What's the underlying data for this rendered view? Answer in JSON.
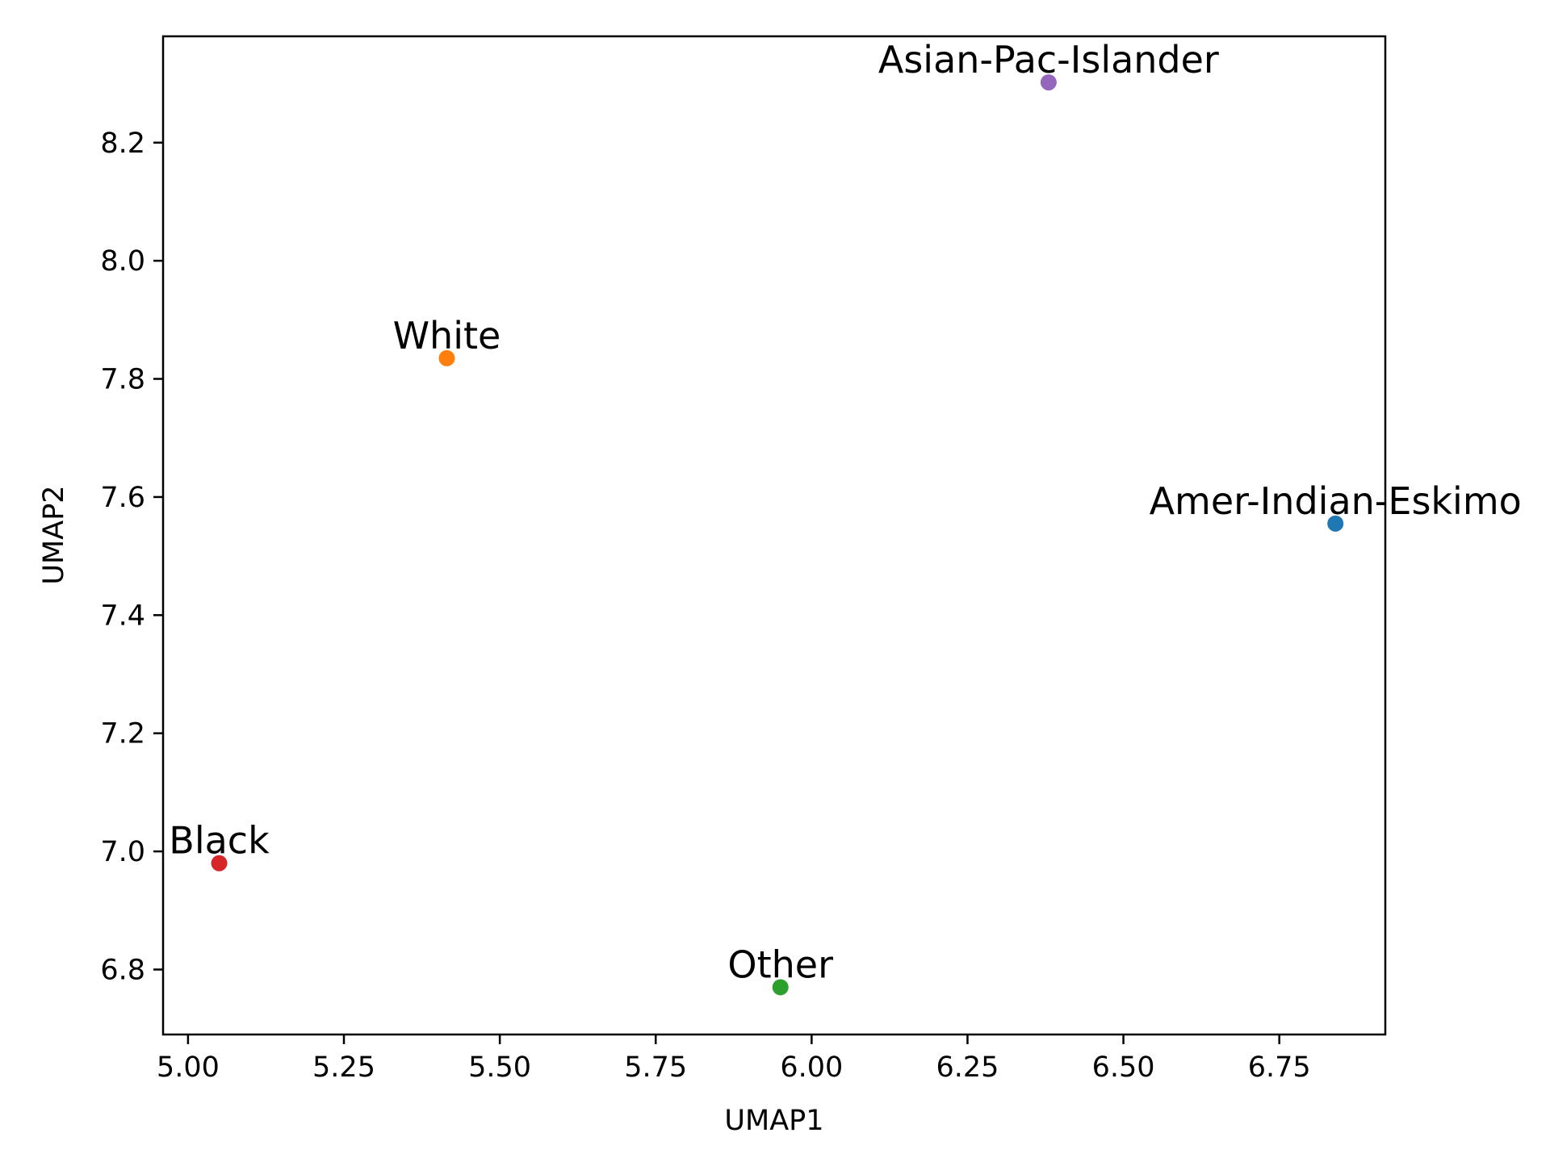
{
  "chart_data": {
    "type": "scatter",
    "title": "",
    "xlabel": "UMAP1",
    "ylabel": "UMAP2",
    "xlim": [
      4.96,
      6.92
    ],
    "ylim": [
      6.69,
      8.38
    ],
    "grid": false,
    "legend": "none",
    "x_ticks": [
      5.0,
      5.25,
      5.5,
      5.75,
      6.0,
      6.25,
      6.5,
      6.75
    ],
    "x_tick_labels": [
      "5.00",
      "5.25",
      "5.50",
      "5.75",
      "6.00",
      "6.25",
      "6.50",
      "6.75"
    ],
    "y_ticks": [
      6.8,
      7.0,
      7.2,
      7.4,
      7.6,
      7.8,
      8.0,
      8.2
    ],
    "y_tick_labels": [
      "6.8",
      "7.0",
      "7.2",
      "7.4",
      "7.6",
      "7.8",
      "8.0",
      "8.2"
    ],
    "points": [
      {
        "label": "Amer-Indian-Eskimo",
        "x": 6.84,
        "y": 7.555,
        "color": "#1f77b4"
      },
      {
        "label": "White",
        "x": 5.415,
        "y": 7.835,
        "color": "#ff7f0e"
      },
      {
        "label": "Other",
        "x": 5.95,
        "y": 6.77,
        "color": "#2ca02c"
      },
      {
        "label": "Black",
        "x": 5.05,
        "y": 6.98,
        "color": "#d62728"
      },
      {
        "label": "Asian-Pac-Islander",
        "x": 6.38,
        "y": 8.302,
        "color": "#9467bd"
      }
    ]
  }
}
